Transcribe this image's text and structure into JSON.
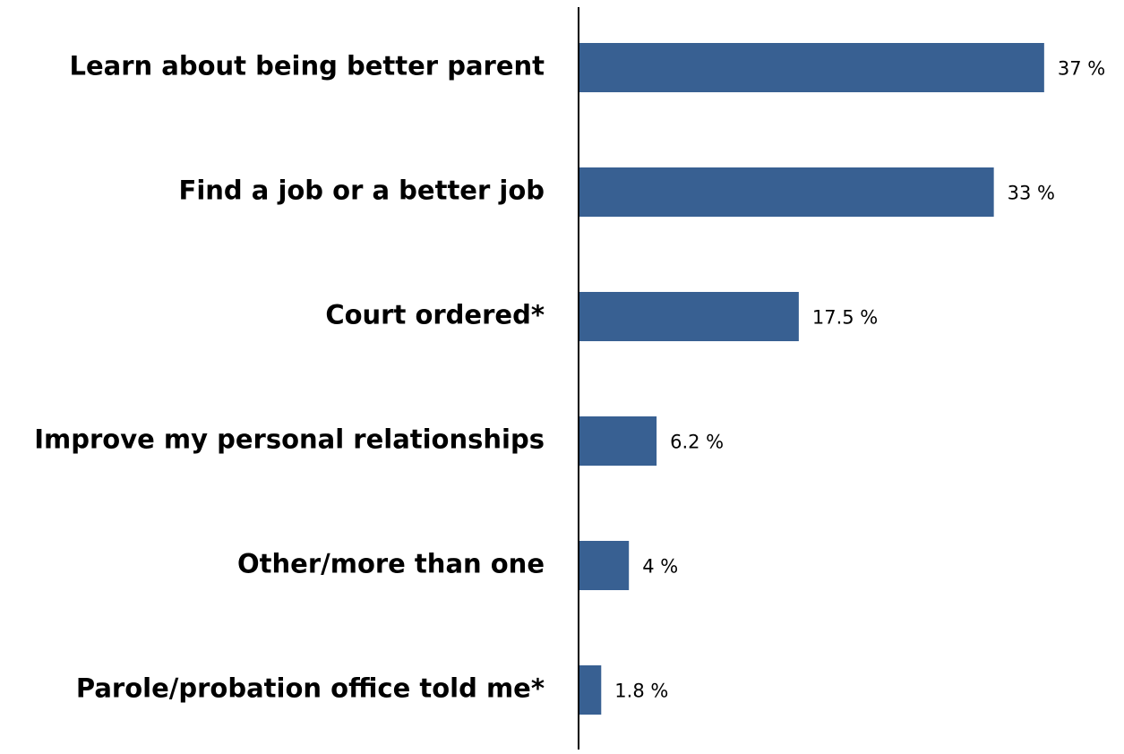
{
  "chart_data": {
    "type": "bar",
    "orientation": "horizontal",
    "title": "",
    "xlabel": "",
    "ylabel": "",
    "categories": [
      "Learn about being better parent",
      "Find a job or a better job",
      "Court ordered*",
      "Improve my personal relationships",
      "Other/more than one",
      "Parole/probation office told me*"
    ],
    "values": [
      37,
      33,
      17.5,
      6.2,
      4,
      1.8
    ],
    "value_labels": [
      "37 %",
      "33 %",
      "17.5 %",
      "6.2 %",
      "4 %",
      "1.8 %"
    ],
    "xlim": [
      0,
      40
    ],
    "grid": false,
    "legend": "none",
    "bar_color": "#386092",
    "axis_color": "#000000"
  }
}
